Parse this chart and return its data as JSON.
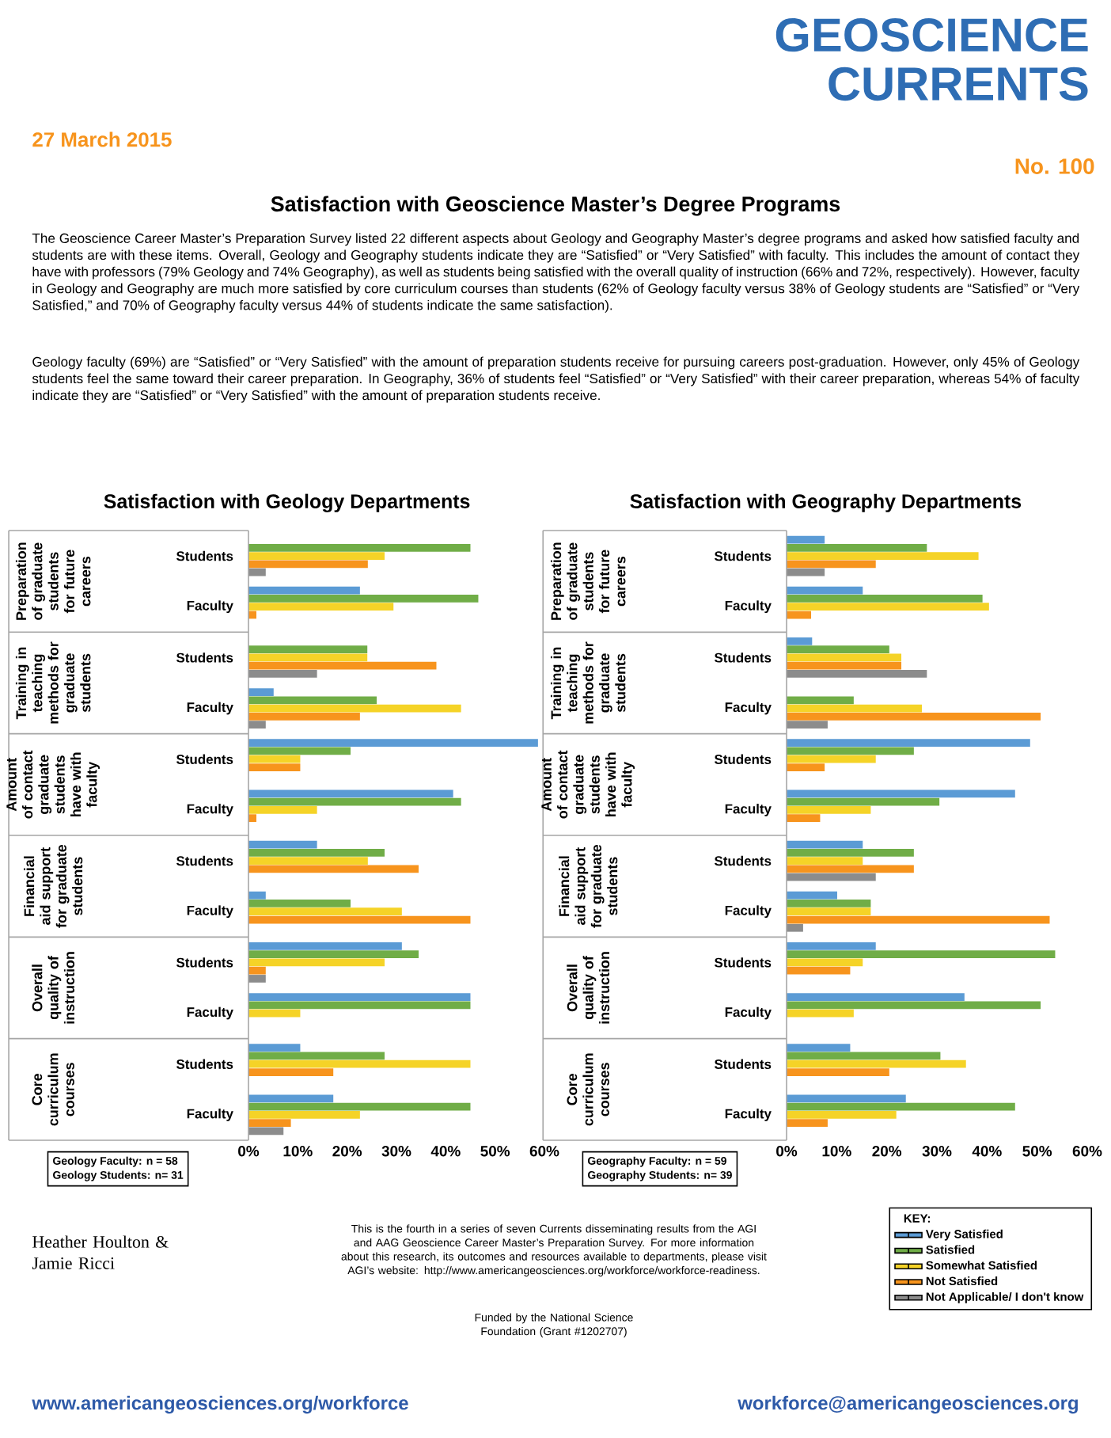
{
  "chart_data": [
    {
      "type": "other",
      "title": "GEOSCIENCE CURRENTS",
      "subtitle": "Satisfaction with Geoscience Master’s Degree Programs",
      "annotations": [
        "No. 100",
        "27 March 2015",
        "The Geoscience Career Master’s Preparation Survey listed 22 different aspects about Geology and Geography Master’s degree programs and asked how satisfied faculty and students are with these items.  Overall, Geology and Geography students indicate they are “Satisfied” or “Very Satisfied” with faculty. This includes the amount of contact they have with professors (79% Geology and 74% Geography), as well as students being satisfied with the overall quality of instruction (66% and 72%, respectively).  However, faculty in Geology and Geography are much more satisfied by core curriculum courses than students (62% of Geology faculty versus 38% of Geology students are “Satisfied” or “Very Satisfied,” and 70% of Geography faculty versus 44% of students indicate the same satisfaction).",
        "Geology faculty (69%) are “Satisfied” or “Very Satisfied” with the amount of preparation students receive for pursuing careers post-graduation. However, only 45% of Geology students feel the same toward their career preparation. In Geography, 36% of students feel “Satisfied” or “Very Satisfied” with their career preparation, whereas 54% of faculty indicate they are “Satisfied” or  “Very Satisfied” with the amount of preparation students receive.",
        "Heather Houlton & Jamie Ricci",
        "This is the fourth in a series of seven Currents disseminating results from the AGI and AAG Geoscience Career Master’s Preparation Survey.  For more information about this research, its outcomes and resources available to departments, please visit AGI’s website: http://www.americangeosciences.org/workforce/workforce-readiness.",
        "Funded by the National Science Foundation (Grant #1202707)",
        "www.americangeosciences.org/workforce",
        "workforce@americangeosciences.org"
      ]
    },
    {
      "type": "bar",
      "orientation": "horizontal",
      "title": "Satisfaction with Geology Departments",
      "categories": [
        "Students",
        "Faculty",
        "Students",
        "Faculty",
        "Students",
        "Faculty",
        "Students",
        "Faculty",
        "Students",
        "Faculty",
        "Students",
        "Faculty"
      ],
      "annotations": [
        "Preparation of graduate students for future careers",
        "Training in teaching methods for graduate students",
        "Amount of contact graduate students have with faculty",
        "Financial aid support for graduate students",
        "Overall quality of instruction",
        "Core curriculum courses",
        "Geology Faculty: n = 58",
        "Geology Students: n= 31"
      ],
      "xlim": [
        0,
        60
      ],
      "xticks": [
        {
          "value": 0,
          "label": "0%"
        },
        {
          "value": 10,
          "label": "10%"
        },
        {
          "value": 20,
          "label": "20%"
        },
        {
          "value": 30,
          "label": "30%"
        },
        {
          "value": 40,
          "label": "40%"
        },
        {
          "value": 50,
          "label": "50%"
        },
        {
          "value": 60,
          "label": "60%"
        }
      ],
      "series": [
        {
          "color": "#5b9bd5",
          "values": [
            null,
            22.6,
            null,
            5.1,
            58.7,
            41.5,
            13.9,
            3.5,
            31.1,
            45,
            10.5,
            17.2
          ]
        },
        {
          "color": "#70ad47",
          "values": [
            45,
            46.6,
            24.1,
            26,
            20.7,
            43.1,
            27.6,
            20.7,
            34.5,
            45,
            27.6,
            45
          ]
        },
        {
          "color": "#f5d327",
          "values": [
            27.6,
            29.4,
            24.1,
            43.1,
            10.5,
            13.9,
            24.2,
            31.1,
            27.6,
            10.5,
            45,
            22.6
          ]
        },
        {
          "color": "#f7941d",
          "values": [
            24.2,
            1.6,
            38.1,
            22.6,
            10.5,
            1.6,
            34.5,
            45,
            3.5,
            null,
            17.2,
            8.6
          ]
        },
        {
          "color": "#8c8c8c",
          "values": [
            3.5,
            null,
            13.9,
            3.5,
            null,
            null,
            null,
            null,
            3.5,
            null,
            null,
            7.1
          ]
        }
      ]
    },
    {
      "type": "bar",
      "orientation": "horizontal",
      "title": "Satisfaction with Geography Departments",
      "categories": [
        "Students",
        "Faculty",
        "Students",
        "Faculty",
        "Students",
        "Faculty",
        "Students",
        "Faculty",
        "Students",
        "Faculty",
        "Students",
        "Faculty"
      ],
      "annotations": [
        "Preparation of graduate students for future careers",
        "Training in teaching methods for graduate students",
        "Amount of contact graduate students have with faculty",
        "Financial aid support for graduate students",
        "Overall quality of instruction",
        "Core curriculum courses",
        "Geography Faculty: n = 59",
        "Geography Students: n= 39"
      ],
      "xlim": [
        0,
        60
      ],
      "xticks": [
        {
          "value": 0,
          "label": "0%"
        },
        {
          "value": 10,
          "label": "10%"
        },
        {
          "value": 20,
          "label": "20%"
        },
        {
          "value": 30,
          "label": "30%"
        },
        {
          "value": 40,
          "label": "40%"
        },
        {
          "value": 50,
          "label": "50%"
        },
        {
          "value": 60,
          "label": "60%"
        }
      ],
      "legend": "bottom right",
      "legend_title": "KEY:",
      "series": [
        {
          "name": "Very Satisfied",
          "color": "#5b9bd5",
          "values": [
            7.6,
            15.2,
            5.1,
            null,
            48.6,
            45.6,
            15.2,
            10.1,
            17.8,
            35.5,
            12.7,
            23.8
          ]
        },
        {
          "name": "Satisfied",
          "color": "#70ad47",
          "values": [
            28,
            39.1,
            20.5,
            13.4,
            25.4,
            30.5,
            25.4,
            16.8,
            53.6,
            50.7,
            30.7,
            45.6
          ]
        },
        {
          "name": "Somewhat Satisfied",
          "color": "#f5d327",
          "values": [
            38.3,
            40.4,
            22.9,
            27,
            17.8,
            16.8,
            15.2,
            16.8,
            15.2,
            13.4,
            35.8,
            21.9
          ]
        },
        {
          "name": "Not Satisfied",
          "color": "#f7941d",
          "values": [
            17.8,
            4.9,
            22.9,
            50.7,
            7.6,
            6.7,
            25.4,
            52.5,
            12.7,
            null,
            20.5,
            8.2
          ]
        },
        {
          "name": "Not Applicable/ I don't know",
          "color": "#8c8c8c",
          "values": [
            7.6,
            null,
            28,
            8.2,
            null,
            null,
            17.8,
            3.3,
            null,
            null,
            null,
            null
          ]
        }
      ]
    }
  ]
}
